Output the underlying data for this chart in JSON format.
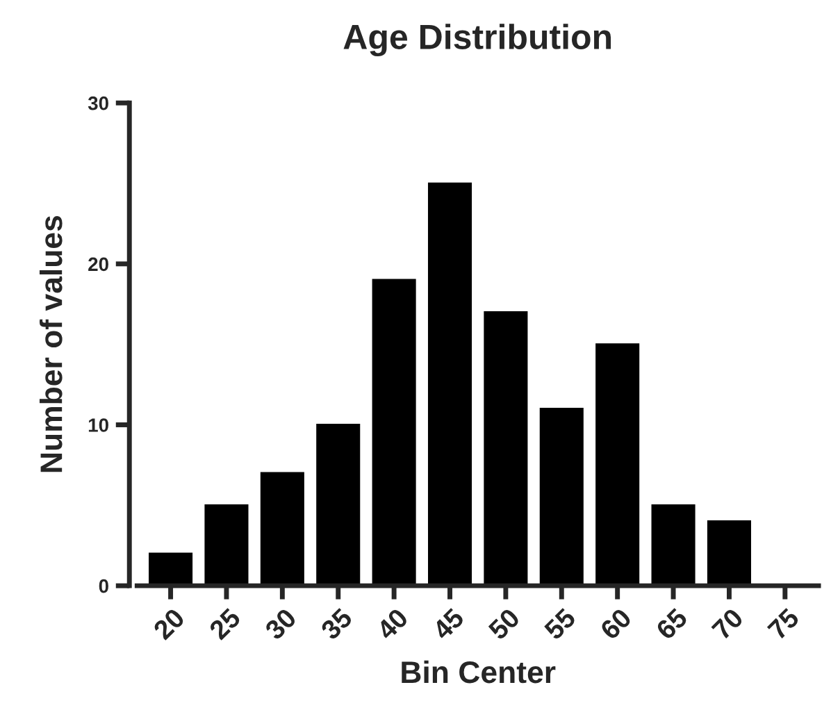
{
  "chart_data": {
    "type": "bar",
    "title": "Age Distribution",
    "xlabel": "Bin Center",
    "ylabel": "Number of values",
    "categories": [
      "20",
      "25",
      "30",
      "35",
      "40",
      "45",
      "50",
      "55",
      "60",
      "65",
      "70",
      "75"
    ],
    "values": [
      2,
      5,
      7,
      10,
      19,
      25,
      17,
      11,
      15,
      5,
      4,
      0
    ],
    "color": "#000000",
    "ylim": [
      0,
      30
    ],
    "yticks": [
      0,
      10,
      20,
      30
    ],
    "grid": false,
    "legend": false
  }
}
